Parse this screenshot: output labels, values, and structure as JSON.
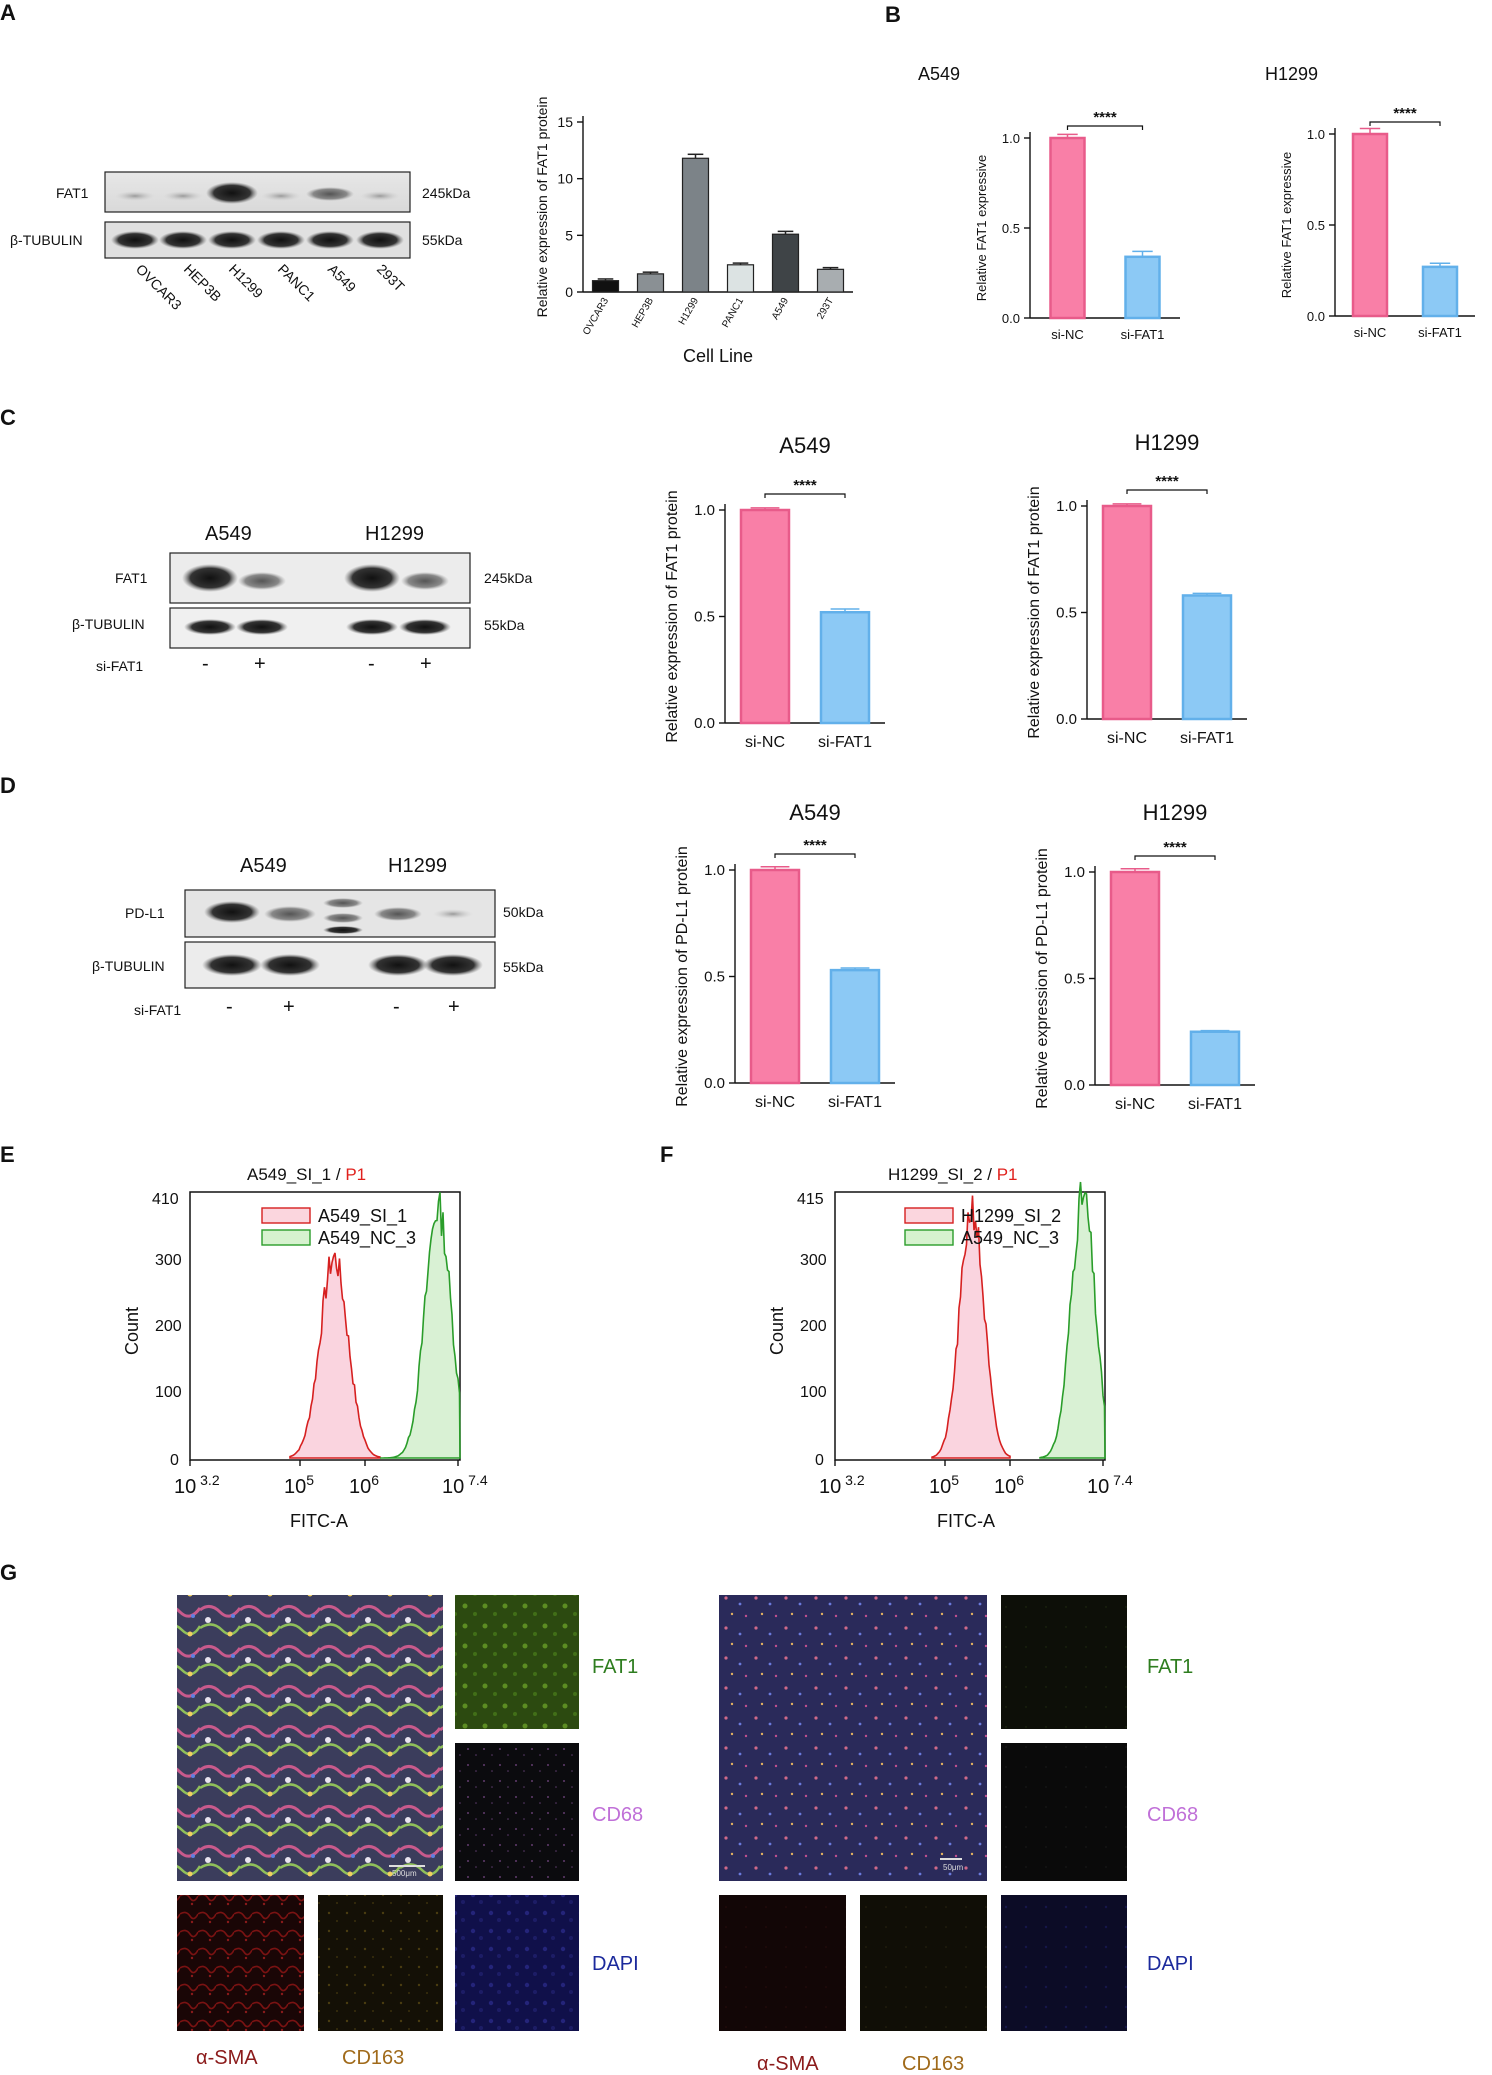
{
  "panel_letters": {
    "a": "A",
    "b": "B",
    "c": "C",
    "d": "D",
    "e": "E",
    "f": "F",
    "g": "G"
  },
  "colors": {
    "si_nc": "#f97fa7",
    "si_nc_edge": "#e85b8a",
    "si_fat1": "#8cc9f5",
    "si_fat1_edge": "#62b0ea",
    "red_trace": "#d62020",
    "green_trace": "#2a9d2a",
    "fat1_label": "#2e7d1f",
    "cd68_label": "#c070d8",
    "dapi_label": "#1c2a9c",
    "asma_label": "#8b1a1a",
    "cd163_label": "#a06a1a",
    "p1_label": "#e0201c"
  },
  "blot_a": {
    "rows": [
      "FAT1",
      "β-TUBULIN"
    ],
    "sizes": [
      "245kDa",
      "55kDa"
    ],
    "lanes": [
      "OVCAR3",
      "HEP3B",
      "H1299",
      "PANC1",
      "A549",
      "293T"
    ]
  },
  "blot_c": {
    "groups": [
      "A549",
      "H1299"
    ],
    "rows": [
      "FAT1",
      "β-TUBULIN"
    ],
    "sizes": [
      "245kDa",
      "55kDa"
    ],
    "treatment_label": "si-FAT1",
    "signs": [
      "-",
      "+",
      "-",
      "+"
    ]
  },
  "blot_d": {
    "groups": [
      "A549",
      "H1299"
    ],
    "rows": [
      "PD-L1",
      "β-TUBULIN"
    ],
    "sizes": [
      "50kDa",
      "55kDa"
    ],
    "treatment_label": "si-FAT1",
    "signs": [
      "-",
      "+",
      "-",
      "+"
    ]
  },
  "significance": "****",
  "flow_e": {
    "title_main": "A549_SI_1",
    "title_sep": " / ",
    "title_gate": "P1",
    "legend": [
      "A549_SI_1",
      "A549_NC_3"
    ],
    "ylabel": "Count",
    "xlabel": "FITC-A",
    "ymax_label": "410",
    "yticks": [
      "0",
      "100",
      "200",
      "300"
    ],
    "xticks": [
      {
        "base": "10",
        "exp": "3.2"
      },
      {
        "base": "10",
        "exp": "5"
      },
      {
        "base": "10",
        "exp": "6"
      },
      {
        "base": "10",
        "exp": "7.4"
      }
    ]
  },
  "flow_f": {
    "title_main": "H1299_SI_2",
    "title_sep": " / ",
    "title_gate": "P1",
    "legend": [
      "H1299_SI_2",
      "A549_NC_3"
    ],
    "ylabel": "Count",
    "xlabel": "FITC-A",
    "ymax_label": "415",
    "yticks": [
      "0",
      "100",
      "200",
      "300"
    ],
    "xticks": [
      {
        "base": "10",
        "exp": "3.2"
      },
      {
        "base": "10",
        "exp": "5"
      },
      {
        "base": "10",
        "exp": "6"
      },
      {
        "base": "10",
        "exp": "7.4"
      }
    ]
  },
  "if_panel": {
    "channels": [
      "FAT1",
      "CD68",
      "DAPI"
    ],
    "bottom_left": [
      "α-SMA",
      "CD163"
    ],
    "scale_left": "500μm",
    "scale_right": "50μm"
  },
  "chart_data": [
    {
      "id": "A-bar",
      "type": "bar",
      "categories": [
        "OVCAR3",
        "HEP3B",
        "H1299",
        "PANC1",
        "A549",
        "293T"
      ],
      "values": [
        1.0,
        1.6,
        11.8,
        2.4,
        5.1,
        2.0
      ],
      "errors": [
        0.15,
        0.15,
        0.35,
        0.15,
        0.25,
        0.15
      ],
      "colors": [
        "#111111",
        "#8a9094",
        "#7c8388",
        "#dce3e3",
        "#3f4447",
        "#a8adb0"
      ],
      "xlabel": "Cell Line",
      "ylabel": "Relative  expression of FAT1 protein",
      "ylim": [
        0,
        15
      ],
      "yticks": [
        0,
        5,
        10,
        15
      ]
    },
    {
      "id": "B-A549",
      "type": "bar",
      "title": "A549",
      "categories": [
        "si-NC",
        "si-FAT1"
      ],
      "values": [
        1.0,
        0.34
      ],
      "errors": [
        0.02,
        0.03
      ],
      "ylabel": "Relative FAT1 expressive",
      "ylim": [
        0,
        1.0
      ],
      "yticks": [
        0.0,
        0.5,
        1.0
      ]
    },
    {
      "id": "B-H1299",
      "type": "bar",
      "title": "H1299",
      "categories": [
        "si-NC",
        "si-FAT1"
      ],
      "values": [
        1.0,
        0.27
      ],
      "errors": [
        0.03,
        0.02
      ],
      "ylabel": "Relative FAT1 expressive",
      "ylim": [
        0,
        1.0
      ],
      "yticks": [
        0.0,
        0.5,
        1.0
      ]
    },
    {
      "id": "C-A549",
      "type": "bar",
      "title": "A549",
      "categories": [
        "si-NC",
        "si-FAT1"
      ],
      "values": [
        1.0,
        0.52
      ],
      "errors": [
        0.01,
        0.015
      ],
      "ylabel": "Relative  expression of FAT1 protein",
      "ylim": [
        0,
        1.0
      ],
      "yticks": [
        0.0,
        0.5,
        1.0
      ]
    },
    {
      "id": "C-H1299",
      "type": "bar",
      "title": "H1299",
      "categories": [
        "si-NC",
        "si-FAT1"
      ],
      "values": [
        1.0,
        0.58
      ],
      "errors": [
        0.01,
        0.01
      ],
      "ylabel": "Relative  expression of FAT1 protein",
      "ylim": [
        0,
        1.0
      ],
      "yticks": [
        0.0,
        0.5,
        1.0
      ]
    },
    {
      "id": "D-A549",
      "type": "bar",
      "title": "A549",
      "categories": [
        "si-NC",
        "si-FAT1"
      ],
      "values": [
        1.0,
        0.53
      ],
      "errors": [
        0.015,
        0.01
      ],
      "ylabel": "Relative  expression of PD-L1 protein",
      "ylim": [
        0,
        1.0
      ],
      "yticks": [
        0.0,
        0.5,
        1.0
      ]
    },
    {
      "id": "D-H1299",
      "type": "bar",
      "title": "H1299",
      "categories": [
        "si-NC",
        "si-FAT1"
      ],
      "values": [
        1.0,
        0.25
      ],
      "errors": [
        0.015,
        0.005
      ],
      "ylabel": "Relative  expression of PD-L1 protein",
      "ylim": [
        0,
        1.0
      ],
      "yticks": [
        0.0,
        0.5,
        1.0
      ]
    }
  ]
}
